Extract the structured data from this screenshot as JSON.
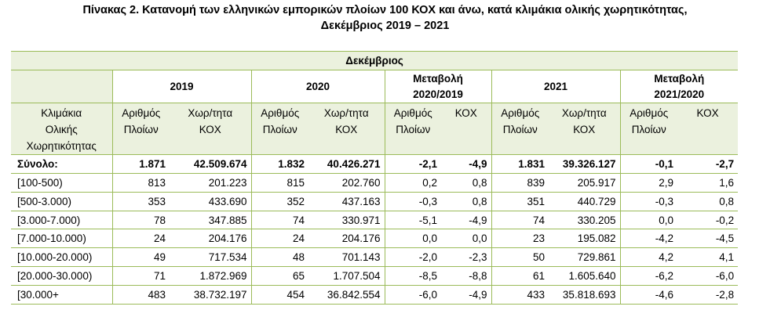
{
  "title": {
    "line1": "Πίνακας 2. Κατανομή των ελληνικών εμπορικών πλοίων 100 ΚΟΧ και άνω, κατά κλιμάκια ολικής χωρητικότητας,",
    "line2": "Δεκέμβριος 2019 – 2021"
  },
  "table": {
    "month": "Δεκέμβριος",
    "groups": {
      "y2019": "2019",
      "y2020": "2020",
      "chg1_line1": "Μεταβολή",
      "chg1_line2": "2020/2019",
      "y2021": "2021",
      "chg2_line1": "Μεταβολή",
      "chg2_line2": "2021/2020"
    },
    "subheaders": {
      "label_line1": "Κλιμάκια",
      "label_line2": "Ολικής",
      "label_line3": "Χωρητικότητας",
      "count_line1": "Αριθμός",
      "count_line2": "Πλοίων",
      "gt_line1": "Χωρ/τητα",
      "gt_line2": "ΚΟΧ",
      "kox": "ΚΟΧ"
    },
    "rows": [
      {
        "label": "Σύνολο:",
        "c2019": "1.871",
        "g2019": "42.509.674",
        "c2020": "1.832",
        "g2020": "40.426.271",
        "ch1c": "-2,1",
        "ch1g": "-4,9",
        "c2021": "1.831",
        "g2021": "39.326.127",
        "ch2c": "-0,1",
        "ch2g": "-2,7"
      },
      {
        "label": "[100-500)",
        "c2019": "813",
        "g2019": "201.223",
        "c2020": "815",
        "g2020": "202.760",
        "ch1c": "0,2",
        "ch1g": "0,8",
        "c2021": "839",
        "g2021": "205.917",
        "ch2c": "2,9",
        "ch2g": "1,6"
      },
      {
        "label": "[500-3.000)",
        "c2019": "353",
        "g2019": "433.690",
        "c2020": "352",
        "g2020": "437.163",
        "ch1c": "-0,3",
        "ch1g": "0,8",
        "c2021": "351",
        "g2021": "440.729",
        "ch2c": "-0,3",
        "ch2g": "0,8"
      },
      {
        "label": "[3.000-7.000)",
        "c2019": "78",
        "g2019": "347.885",
        "c2020": "74",
        "g2020": "330.971",
        "ch1c": "-5,1",
        "ch1g": "-4,9",
        "c2021": "74",
        "g2021": "330.205",
        "ch2c": "0,0",
        "ch2g": "-0,2"
      },
      {
        "label": "[7.000-10.000)",
        "c2019": "24",
        "g2019": "204.176",
        "c2020": "24",
        "g2020": "204.176",
        "ch1c": "0,0",
        "ch1g": "0,0",
        "c2021": "23",
        "g2021": "195.082",
        "ch2c": "-4,2",
        "ch2g": "-4,5"
      },
      {
        "label": "[10.000-20.000)",
        "c2019": "49",
        "g2019": "717.534",
        "c2020": "48",
        "g2020": "701.143",
        "ch1c": "-2,0",
        "ch1g": "-2,3",
        "c2021": "50",
        "g2021": "729.861",
        "ch2c": "4,2",
        "ch2g": "4,1"
      },
      {
        "label": "[20.000-30.000)",
        "c2019": "71",
        "g2019": "1.872.969",
        "c2020": "65",
        "g2020": "1.707.504",
        "ch1c": "-8,5",
        "ch1g": "-8,8",
        "c2021": "61",
        "g2021": "1.605.640",
        "ch2c": "-6,2",
        "ch2g": "-6,0"
      },
      {
        "label": "[30.000+",
        "c2019": "483",
        "g2019": "38.732.197",
        "c2020": "454",
        "g2020": "36.842.554",
        "ch1c": "-6,0",
        "ch1g": "-4,9",
        "c2021": "433",
        "g2021": "35.818.693",
        "ch2c": "-4,6",
        "ch2g": "-2,8"
      }
    ]
  },
  "colors": {
    "header_fill": "#ebf1de",
    "rule": "#9bbb59"
  }
}
